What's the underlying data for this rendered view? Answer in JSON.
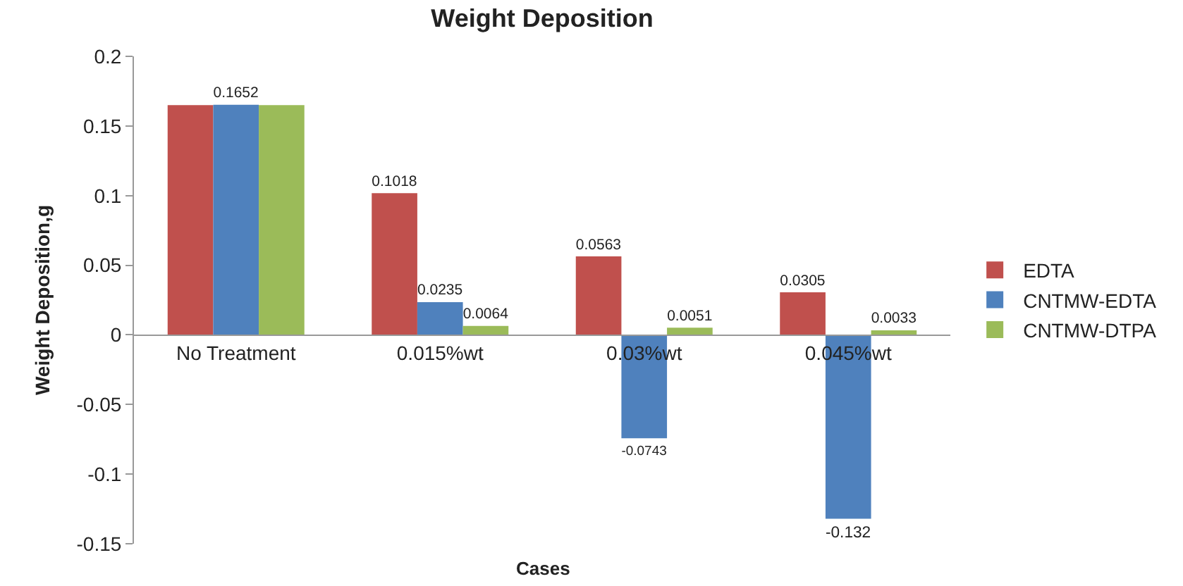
{
  "chart_data": {
    "type": "bar",
    "title": "Weight Deposition",
    "xlabel": "Cases",
    "ylabel": "Weight Deposition,g",
    "categories": [
      "No Treatment",
      "0.015%wt",
      "0.03%wt",
      "0.045%wt"
    ],
    "series": [
      {
        "name": "EDTA",
        "color": "#c0504d",
        "values": [
          0.165,
          0.1018,
          0.0563,
          0.0305
        ],
        "value_labels": [
          null,
          "0.1018",
          "0.0563",
          "0.0305"
        ]
      },
      {
        "name": "CNTMW-EDTA",
        "color": "#4f81bd",
        "values": [
          0.1652,
          0.0235,
          -0.0743,
          -0.132
        ],
        "value_labels": [
          "0.1652",
          "0.0235",
          "-0.0743",
          "-0.132"
        ]
      },
      {
        "name": "CNTMW-DTPA",
        "color": "#9bbb59",
        "values": [
          0.165,
          0.0064,
          0.0051,
          0.0033
        ],
        "value_labels": [
          null,
          "0.0064",
          "0.0051",
          "0.0033"
        ]
      }
    ],
    "ylim": [
      -0.15,
      0.2
    ],
    "yticks": [
      -0.15,
      -0.1,
      -0.05,
      0,
      0.05,
      0.1,
      0.15,
      0.2
    ],
    "legend": "right"
  }
}
